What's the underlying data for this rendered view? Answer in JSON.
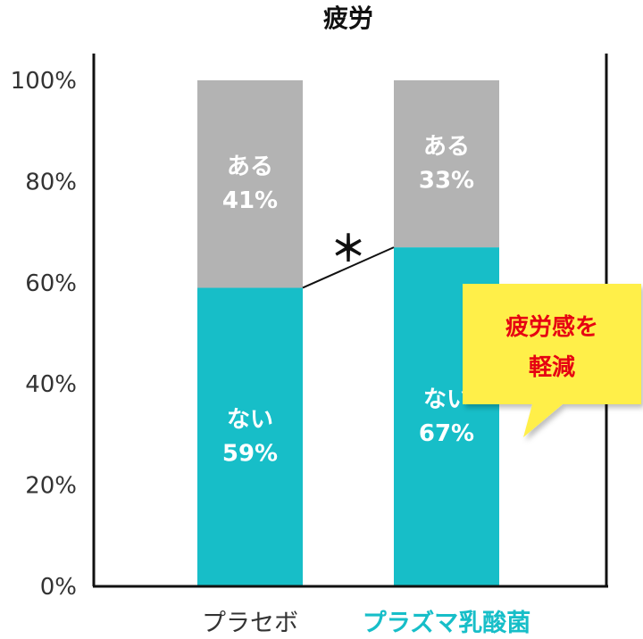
{
  "chart_data": {
    "type": "bar",
    "stacked": true,
    "title": "疲労",
    "ylim": [
      0,
      100
    ],
    "yticks": [
      "0%",
      "20%",
      "40%",
      "60%",
      "80%",
      "100%"
    ],
    "categories": [
      "プラセボ",
      "プラズマ乳酸菌"
    ],
    "series": [
      {
        "name": "ない",
        "values": [
          59,
          67
        ]
      },
      {
        "name": "ある",
        "values": [
          41,
          33
        ]
      }
    ],
    "segment_labels": {
      "bottom": [
        "ない",
        "ない"
      ],
      "bottom_values": [
        "59%",
        "67%"
      ],
      "top": [
        "ある",
        "ある"
      ],
      "top_values": [
        "41%",
        "33%"
      ]
    },
    "significance_marker": "＊",
    "callout": {
      "lines": [
        "疲労感を",
        "軽減"
      ]
    },
    "grid": false
  },
  "colors": {
    "bottom_segment": "#17bec8",
    "top_segment": "#b3b3b3",
    "placebo_label": "#333333",
    "treatment_label": "#17bec8",
    "callout_bg": "#ffef4a",
    "callout_text": "#e60012",
    "axis": "#111111"
  }
}
